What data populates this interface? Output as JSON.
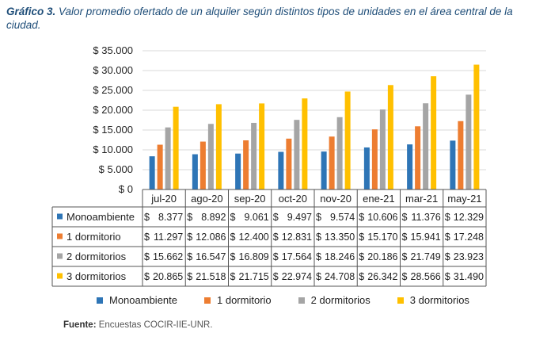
{
  "header": {
    "title_prefix": "Gráfico 3.",
    "title_text": "Valor promedio ofertado de un alquiler según distintos tipos de unidades en el área central de la ciudad."
  },
  "source": {
    "label": "Fuente:",
    "text": "Encuestas COCIR-IIE-UNR."
  },
  "chart_data": {
    "type": "bar",
    "categories": [
      "jul-20",
      "ago-20",
      "sep-20",
      "oct-20",
      "nov-20",
      "ene-21",
      "mar-21",
      "may-21"
    ],
    "y_ticks": [
      "$ 0",
      "$ 5.000",
      "$ 10.000",
      "$ 15.000",
      "$ 20.000",
      "$ 25.000",
      "$ 30.000",
      "$ 35.000"
    ],
    "ylim": [
      0,
      35000
    ],
    "grid": true,
    "legend_position": "bottom",
    "series": [
      {
        "name": "Monoambiente",
        "color": "#2e75b6",
        "values": [
          8377,
          8892,
          9061,
          9497,
          9574,
          10606,
          11376,
          12329
        ],
        "labels": [
          "$ 8.377",
          "$ 8.892",
          "$ 9.061",
          "$ 9.497",
          "$ 9.574",
          "$ 10.606",
          "$ 11.376",
          "$ 12.329"
        ]
      },
      {
        "name": "1 dormitorio",
        "color": "#ed7d31",
        "values": [
          11297,
          12086,
          12400,
          12831,
          13350,
          15170,
          15941,
          17248
        ],
        "labels": [
          "$ 11.297",
          "$ 12.086",
          "$ 12.400",
          "$ 12.831",
          "$ 13.350",
          "$ 15.170",
          "$ 15.941",
          "$ 17.248"
        ]
      },
      {
        "name": "2 dormitorios",
        "color": "#a5a5a5",
        "values": [
          15662,
          16547,
          16809,
          17564,
          18246,
          20186,
          21749,
          23923
        ],
        "labels": [
          "$ 15.662",
          "$ 16.547",
          "$ 16.809",
          "$ 17.564",
          "$ 18.246",
          "$ 20.186",
          "$ 21.749",
          "$ 23.923"
        ]
      },
      {
        "name": "3 dormitorios",
        "color": "#ffc000",
        "values": [
          20865,
          21518,
          21715,
          22974,
          24708,
          26342,
          28566,
          31490
        ],
        "labels": [
          "$ 20.865",
          "$ 21.518",
          "$ 21.715",
          "$ 22.974",
          "$ 24.708",
          "$ 26.342",
          "$ 28.566",
          "$ 31.490"
        ]
      }
    ]
  }
}
